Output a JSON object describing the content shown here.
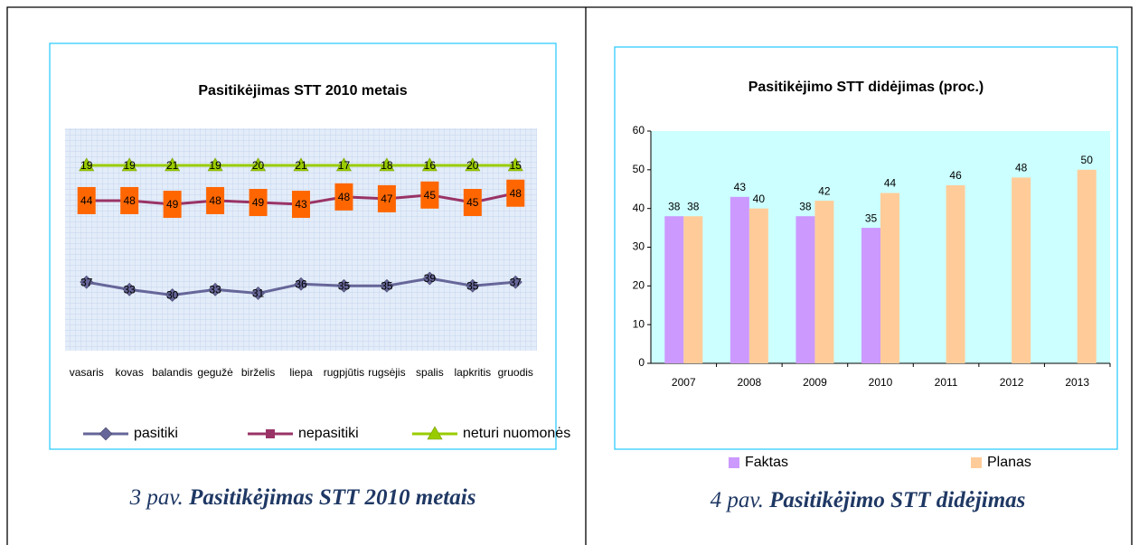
{
  "chart_data": [
    {
      "type": "line",
      "stacked": true,
      "title": "Pasitikėjimas STT  2010 metais",
      "categories": [
        "vasaris",
        "kovas",
        "balandis",
        "gegužė",
        "birželis",
        "liepa",
        "rugpjūtis",
        "rugsėjis",
        "spalis",
        "lapkritis",
        "gruodis"
      ],
      "series": [
        {
          "name": "pasitiki",
          "color": "#666699",
          "marker": "diamond",
          "values": [
            37,
            33,
            30,
            33,
            31,
            36,
            35,
            35,
            39,
            35,
            37
          ]
        },
        {
          "name": "nepasitiki",
          "color": "#993366",
          "marker": "square",
          "label_box": "#ff6600",
          "values": [
            44,
            48,
            49,
            48,
            49,
            43,
            48,
            47,
            45,
            45,
            48
          ]
        },
        {
          "name": "neturi nuomonės",
          "color": "#99cc00",
          "marker": "triangle",
          "values": [
            19,
            19,
            21,
            19,
            20,
            21,
            17,
            18,
            16,
            20,
            15
          ]
        }
      ],
      "ylim": [
        0,
        120
      ],
      "grid": true,
      "legend": "bottom"
    },
    {
      "type": "bar",
      "title": "Pasitikėjimo STT didėjimas (proc.)",
      "categories": [
        "2007",
        "2008",
        "2009",
        "2010",
        "2011",
        "2012",
        "2013"
      ],
      "series": [
        {
          "name": "Faktas",
          "color": "#cc99ff",
          "values": [
            38,
            43,
            38,
            35,
            null,
            null,
            null
          ]
        },
        {
          "name": "Planas",
          "color": "#ffcc99",
          "values": [
            38,
            40,
            42,
            44,
            46,
            48,
            50
          ]
        }
      ],
      "ylim": [
        0,
        60
      ],
      "yticks": [
        0,
        10,
        20,
        30,
        40,
        50,
        60
      ],
      "background": "#ccffff",
      "legend": "bottom"
    }
  ],
  "captions": [
    {
      "prefix": "3 pav.",
      "text": "Pasitikėjimas STT 2010 metais"
    },
    {
      "prefix": "4 pav.",
      "text": "Pasitikėjimo STT didėjimas"
    }
  ]
}
